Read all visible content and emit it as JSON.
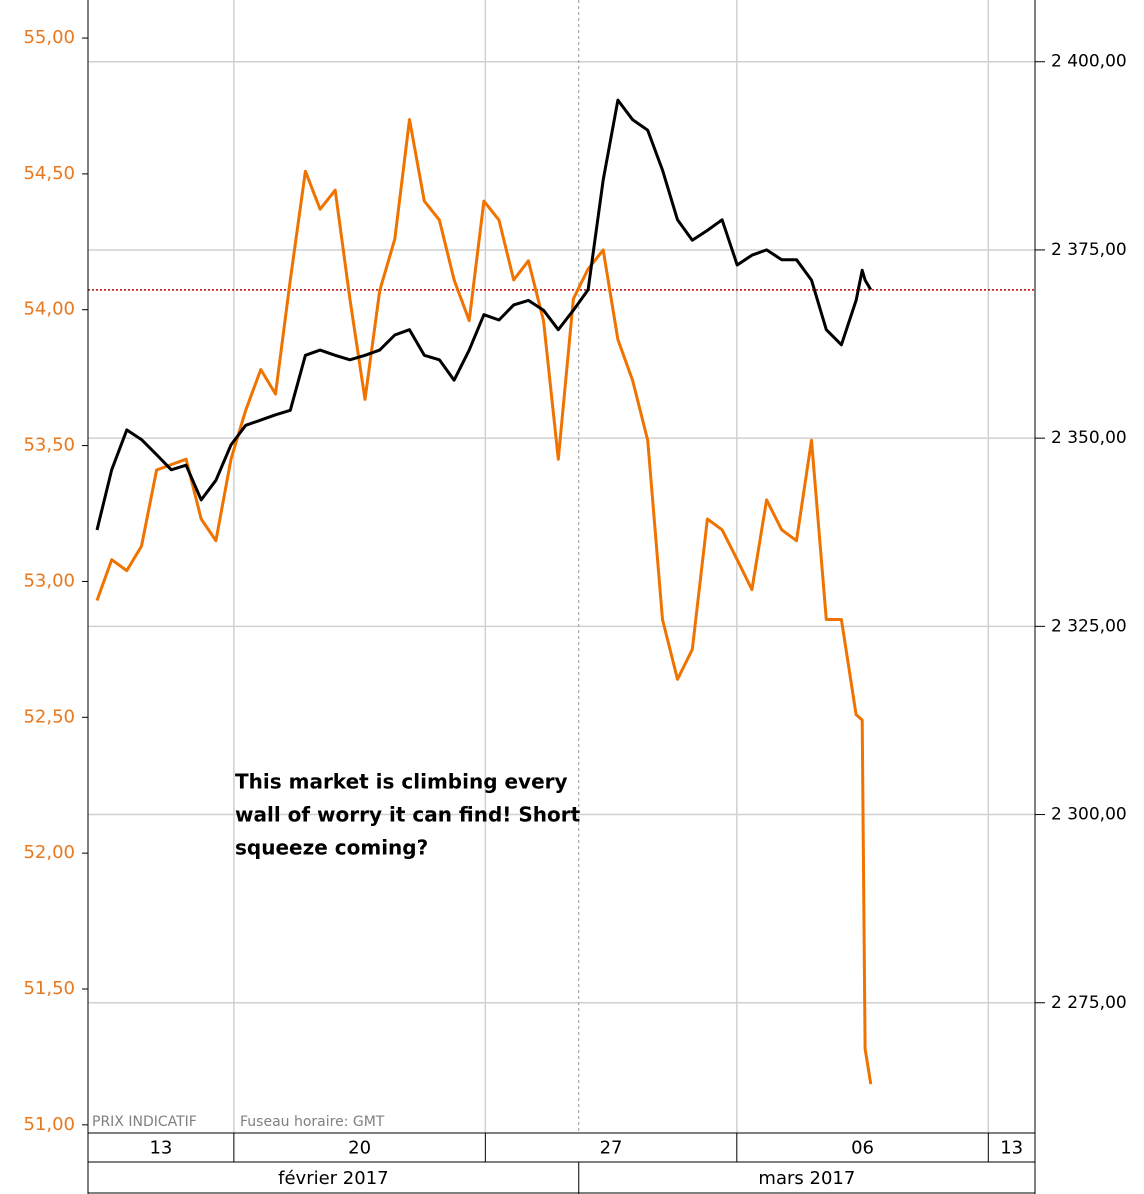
{
  "chart_data": {
    "type": "line",
    "x": [
      3.19,
      3.6,
      4.02,
      4.43,
      4.85,
      5.26,
      5.67,
      6.09,
      6.5,
      6.92,
      7.33,
      7.75,
      8.16,
      8.57,
      8.99,
      9.4,
      9.82,
      10.23,
      10.65,
      11.06,
      11.48,
      11.89,
      12.3,
      12.72,
      13.13,
      13.55,
      13.96,
      14.38,
      14.79,
      15.2,
      15.62,
      16.03,
      16.45,
      16.86,
      17.28,
      17.69,
      18.1,
      18.52,
      18.93,
      19.35,
      19.76,
      20.18,
      20.59,
      21.01,
      21.42,
      21.83,
      22.25,
      22.66,
      23.08,
      23.49,
      23.91,
      24.32,
      24.49,
      24.57,
      24.73
    ],
    "series": [
      {
        "color": "#f07300",
        "axis": "y",
        "values": [
          52.93,
          53.08,
          53.04,
          53.13,
          53.41,
          53.43,
          53.45,
          53.23,
          53.15,
          53.45,
          53.63,
          53.78,
          53.69,
          54.11,
          54.51,
          54.37,
          54.44,
          54.04,
          53.67,
          54.07,
          54.26,
          54.7,
          54.4,
          54.33,
          54.11,
          53.96,
          54.4,
          54.33,
          54.11,
          54.18,
          53.96,
          53.45,
          54.04,
          54.15,
          54.22,
          53.89,
          53.74,
          53.52,
          52.86,
          52.64,
          52.75,
          53.23,
          53.19,
          53.08,
          52.97,
          53.3,
          53.19,
          53.15,
          53.52,
          52.86,
          52.86,
          52.51,
          52.49,
          51.28,
          51.15
        ]
      },
      {
        "color": "#000000",
        "axis": "y2",
        "values": [
          2337.8,
          2345.8,
          2351.1,
          2349.8,
          2347.8,
          2345.8,
          2346.4,
          2341.8,
          2344.4,
          2349.1,
          2351.7,
          2352.4,
          2353.1,
          2353.7,
          2361.0,
          2361.7,
          2361.0,
          2360.4,
          2361.0,
          2361.7,
          2363.7,
          2364.4,
          2361.0,
          2360.4,
          2357.7,
          2361.7,
          2366.4,
          2365.7,
          2367.7,
          2368.3,
          2367.0,
          2364.4,
          2367.0,
          2369.7,
          2384.3,
          2394.9,
          2392.3,
          2390.9,
          2385.6,
          2379.0,
          2376.3,
          2377.6,
          2379.0,
          2373.0,
          2374.3,
          2375.0,
          2373.7,
          2373.7,
          2371.0,
          2364.4,
          2362.4,
          2368.3,
          2372.3,
          2371.0,
          2369.7
        ]
      }
    ],
    "xlim": [
      2.94,
      29.3
    ],
    "xticks": [
      7,
      14,
      21,
      28
    ],
    "ylim": [
      50.97,
      55.14
    ],
    "yticks": [
      {
        "value": 51,
        "label": "51,00"
      },
      {
        "value": 51.5,
        "label": "51,50"
      },
      {
        "value": 52,
        "label": "52,00"
      },
      {
        "value": 52.5,
        "label": "52,50"
      },
      {
        "value": 53,
        "label": "53,00"
      },
      {
        "value": 53.5,
        "label": "53,50"
      },
      {
        "value": 54,
        "label": "54,00"
      },
      {
        "value": 54.5,
        "label": "54,50"
      },
      {
        "value": 55,
        "label": "55,00"
      }
    ],
    "y2lim": [
      2257.7,
      2408.2
    ],
    "y2ticks": [
      {
        "value": 2275,
        "label": "2 275,00"
      },
      {
        "value": 2300,
        "label": "2 300,00"
      },
      {
        "value": 2325,
        "label": "2 325,00"
      },
      {
        "value": 2350,
        "label": "2 350,00"
      },
      {
        "value": 2375,
        "label": "2 375,00"
      },
      {
        "value": 2400,
        "label": "2 400,00"
      }
    ],
    "week_bands": [
      {
        "label": "13",
        "from": 2.94,
        "to": 7
      },
      {
        "label": "20",
        "from": 7,
        "to": 14
      },
      {
        "label": "27",
        "from": 14,
        "to": 21
      },
      {
        "label": "06",
        "from": 21,
        "to": 28
      },
      {
        "label": "13",
        "from": 28,
        "to": 29.3
      }
    ],
    "month_bands": [
      {
        "label": "février 2017",
        "from": 2.94,
        "to": 16.6
      },
      {
        "label": "mars 2017",
        "from": 16.6,
        "to": 29.3
      }
    ],
    "reference_line": {
      "value": 2369.7,
      "axis": "y2",
      "color": "#c00000"
    },
    "annotation": [
      "This market is climbing every",
      "wall of worry it can find! Short",
      "squeeze coming?"
    ],
    "footnotes": [
      "PRIX INDICATIF",
      "Fuseau horaire: GMT"
    ],
    "grid": true
  }
}
